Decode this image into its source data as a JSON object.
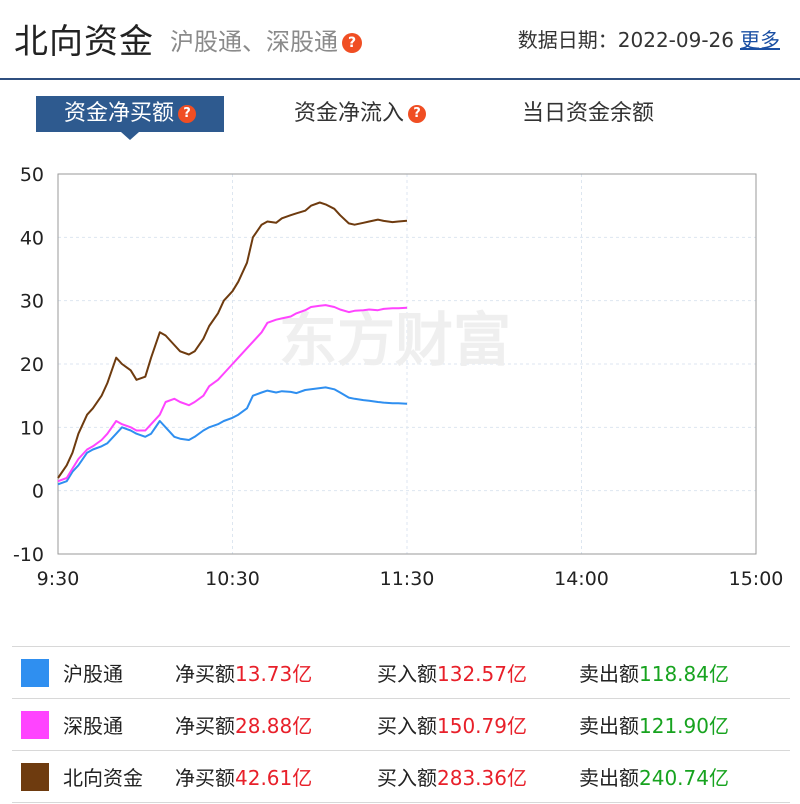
{
  "header": {
    "title": "北向资金",
    "subtitle": "沪股通、深股通",
    "help_glyph": "?",
    "date_label": "数据日期：",
    "date_value": "2022-09-26",
    "more_label": "更多"
  },
  "tabs": [
    {
      "label": "资金净买额",
      "active": true,
      "has_help": true
    },
    {
      "label": "资金净流入",
      "active": false,
      "has_help": true
    },
    {
      "label": "当日资金余额",
      "active": false,
      "has_help": false
    }
  ],
  "watermark": "东方财富",
  "colors": {
    "shgt": "#2f8ff0",
    "sgt": "#ff44ff",
    "north": "#6e3b0f",
    "accent": "#2e5a8f",
    "positive": "#e8202a",
    "negative": "#17a31f"
  },
  "chart_data": {
    "type": "line",
    "ylim": [
      -10,
      50
    ],
    "yticks": [
      "50",
      "40",
      "30",
      "20",
      "10",
      "0",
      "-10"
    ],
    "x_ticks": [
      {
        "label": "9:30",
        "minutes": 0
      },
      {
        "label": "10:30",
        "minutes": 60
      },
      {
        "label": "11:30",
        "minutes": 120
      },
      {
        "label": "14:00",
        "minutes": 180
      },
      {
        "label": "15:00",
        "minutes": 240
      }
    ],
    "x": [
      0,
      3,
      5,
      7,
      10,
      12,
      15,
      17,
      20,
      22,
      25,
      27,
      30,
      32,
      35,
      37,
      40,
      42,
      45,
      47,
      50,
      52,
      55,
      57,
      60,
      62,
      65,
      67,
      70,
      72,
      75,
      77,
      80,
      82,
      85,
      87,
      90,
      92,
      95,
      97,
      100,
      102,
      105,
      107,
      110,
      112,
      115,
      117,
      120
    ],
    "series": [
      {
        "name": "沪股通",
        "color_key": "shgt",
        "values": [
          1,
          1.5,
          3,
          4,
          6,
          6.5,
          7,
          7.5,
          9,
          10,
          9.5,
          9,
          8.5,
          9,
          11,
          10,
          8.5,
          8.2,
          8,
          8.5,
          9.5,
          10,
          10.5,
          11,
          11.5,
          12,
          13,
          15,
          15.5,
          15.8,
          15.5,
          15.7,
          15.6,
          15.4,
          15.9,
          16,
          16.2,
          16.3,
          16,
          15.5,
          14.7,
          14.5,
          14.3,
          14.2,
          14.0,
          13.9,
          13.8,
          13.8,
          13.73
        ]
      },
      {
        "name": "深股通",
        "color_key": "sgt",
        "values": [
          1.5,
          2,
          3.5,
          5,
          6.5,
          7,
          8,
          9,
          11,
          10.5,
          10,
          9.5,
          9.5,
          10.5,
          12,
          14,
          14.5,
          14,
          13.5,
          14,
          15,
          16.5,
          17.5,
          18.5,
          20,
          21,
          22.5,
          23.5,
          25,
          26.5,
          27,
          27.2,
          27.5,
          28,
          28.5,
          29,
          29.2,
          29.3,
          29.0,
          28.6,
          28.2,
          28.4,
          28.5,
          28.6,
          28.5,
          28.7,
          28.8,
          28.8,
          28.88
        ]
      },
      {
        "name": "北向资金",
        "color_key": "north",
        "values": [
          2,
          4,
          6,
          9,
          12,
          13,
          15,
          17,
          21,
          20,
          19,
          17.5,
          18,
          21,
          25,
          24.5,
          23,
          22,
          21.5,
          22,
          24,
          26,
          28,
          30,
          31.5,
          33,
          36,
          40,
          42,
          42.5,
          42.3,
          43,
          43.5,
          43.8,
          44.2,
          45,
          45.5,
          45.2,
          44.5,
          43.5,
          42.2,
          42.0,
          42.3,
          42.5,
          42.8,
          42.6,
          42.4,
          42.5,
          42.61
        ]
      }
    ]
  },
  "legend_rows": [
    {
      "name": "沪股通",
      "color_key": "shgt",
      "net_label": "净买额",
      "net_value": "13.73亿",
      "buy_label": "买入额",
      "buy_value": "132.57亿",
      "sell_label": "卖出额",
      "sell_value": "118.84亿"
    },
    {
      "name": "深股通",
      "color_key": "sgt",
      "net_label": "净买额",
      "net_value": "28.88亿",
      "buy_label": "买入额",
      "buy_value": "150.79亿",
      "sell_label": "卖出额",
      "sell_value": "121.90亿"
    },
    {
      "name": "北向资金",
      "color_key": "north",
      "net_label": "净买额",
      "net_value": "42.61亿",
      "buy_label": "买入额",
      "buy_value": "283.36亿",
      "sell_label": "卖出额",
      "sell_value": "240.74亿"
    }
  ]
}
